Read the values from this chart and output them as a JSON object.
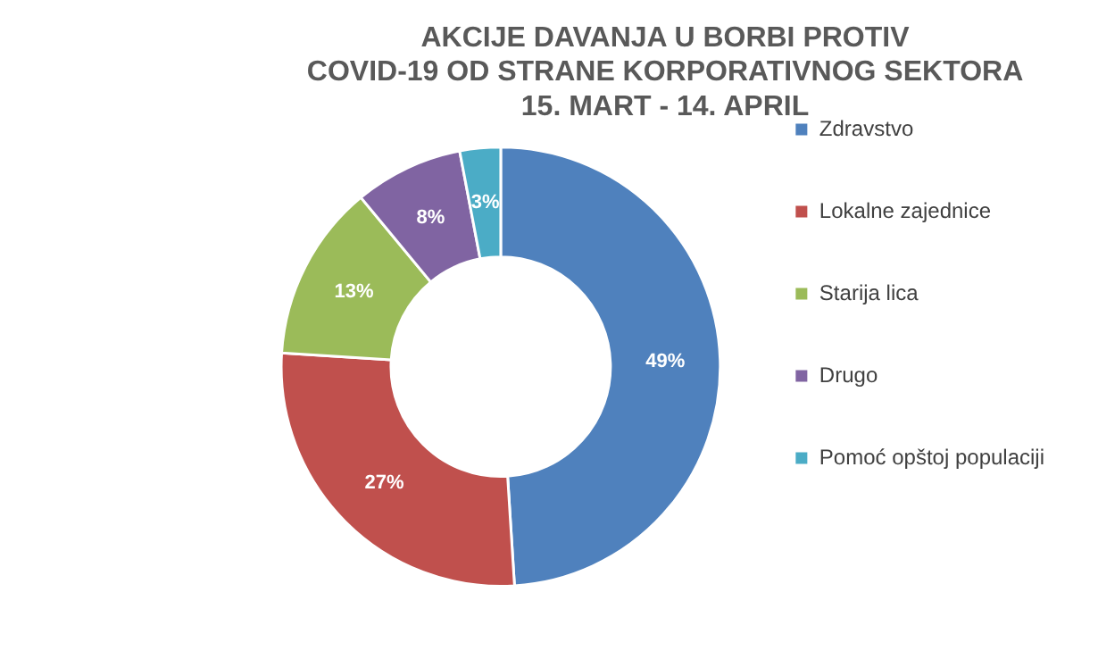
{
  "chart_data": {
    "type": "donut",
    "title": "AKCIJE DAVANJA U BORBI PROTIV\nCOVID-19 OD STRANE KORPORATIVNOG SEKTORA\n15. MART - 14. APRIL",
    "categories": [
      "Zdravstvo",
      "Lokalne zajednice",
      "Starija lica",
      "Drugo",
      "Pomoć opštoj populaciji"
    ],
    "values": [
      49,
      27,
      13,
      8,
      3
    ],
    "colors": [
      "#4f81bd",
      "#c0504d",
      "#9bbb59",
      "#8064a2",
      "#4bacc6"
    ],
    "value_labels": [
      "49%",
      "27%",
      "13%",
      "8%",
      "3%"
    ],
    "legend": "right"
  }
}
